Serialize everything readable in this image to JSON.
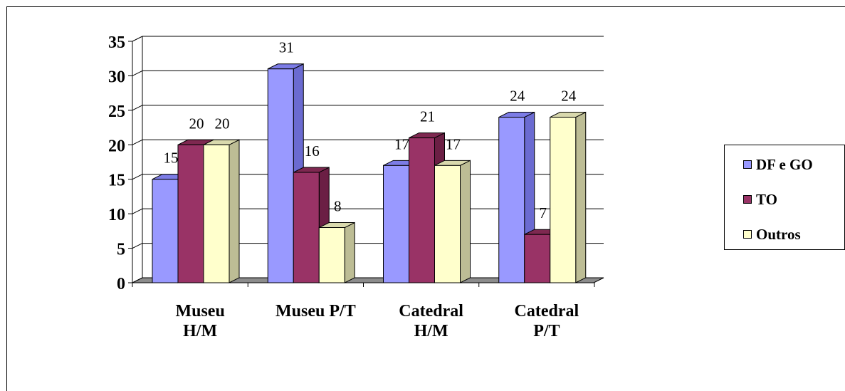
{
  "chart_data": {
    "type": "bar",
    "categories": [
      [
        "Museu",
        "H/M"
      ],
      [
        "Museu P/T"
      ],
      [
        "Catedral",
        "H/M"
      ],
      [
        "Catedral",
        "P/T"
      ]
    ],
    "series": [
      {
        "name": "DF e GO",
        "values": [
          15,
          31,
          17,
          24
        ],
        "color": "#9999ff",
        "side": "#6b6bd1",
        "top": "#7c7ce6"
      },
      {
        "name": "TO",
        "values": [
          20,
          16,
          21,
          7
        ],
        "color": "#993366",
        "side": "#6b1f44",
        "top": "#7e2850"
      },
      {
        "name": "Outros",
        "values": [
          20,
          8,
          17,
          24
        ],
        "color": "#ffffcc",
        "side": "#bdbd95",
        "top": "#d9d9ad"
      }
    ],
    "ylim": [
      0,
      35
    ],
    "yticks": [
      "0",
      "5",
      "10",
      "15",
      "20",
      "25",
      "30",
      "35"
    ],
    "grid": true,
    "legend": "right",
    "data_labels": true
  },
  "colors": {
    "floor": "#8c8c8c",
    "grid": "#000000"
  }
}
